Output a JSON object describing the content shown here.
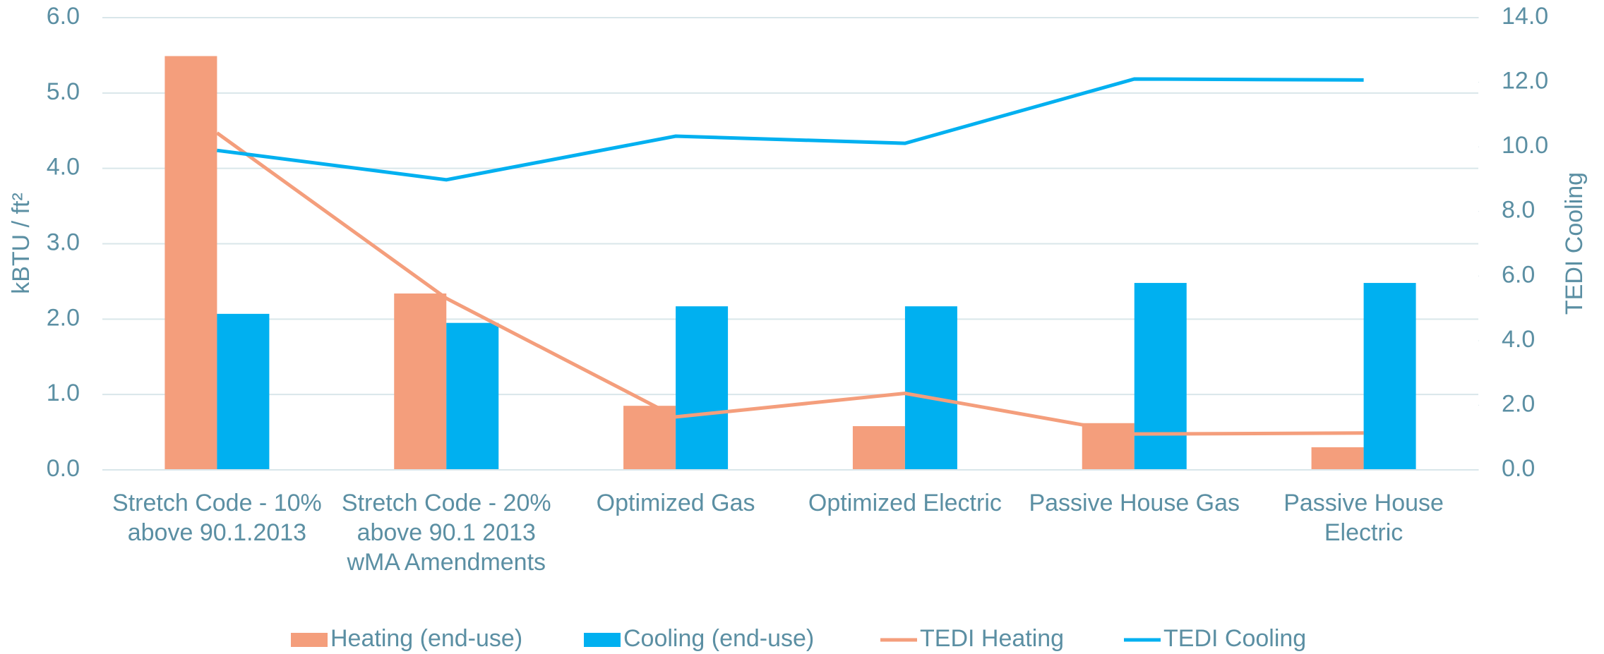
{
  "chart_data": {
    "type": "bar_line",
    "categories": [
      "Stretch Code - 10% above 90.1.2013",
      "Stretch Code - 20% above 90.1 2013 wMA Amendments",
      "Optimized Gas",
      "Optimized Electric",
      "Passive House Gas",
      "Passive House Electric"
    ],
    "series": [
      {
        "name": "Heating (end-use)",
        "type": "bar",
        "color": "#f49e7c",
        "values": [
          5.49,
          2.34,
          0.85,
          0.58,
          0.62,
          0.3
        ]
      },
      {
        "name": "Cooling (end-use)",
        "type": "bar",
        "color": "#00b0f0",
        "values": [
          2.07,
          1.95,
          2.17,
          2.17,
          2.48,
          2.48
        ]
      },
      {
        "name": "TEDI Heating",
        "type": "line",
        "axis": "y2",
        "color": "#f49e7c",
        "values": [
          10.43,
          5.31,
          1.64,
          2.37,
          1.11,
          1.14
        ]
      },
      {
        "name": "TEDI Cooling",
        "type": "line",
        "axis": "y2",
        "color": "#00b0f0",
        "values": [
          9.89,
          8.98,
          10.33,
          10.11,
          12.1,
          12.07
        ]
      }
    ],
    "ylabel": "kBTU / ft²",
    "y2label": "TEDI Cooling",
    "ylim": [
      0,
      6
    ],
    "yticks": [
      {
        "value": 0,
        "label": "0.0"
      },
      {
        "value": 1,
        "label": "1.0"
      },
      {
        "value": 2,
        "label": "2.0"
      },
      {
        "value": 3,
        "label": "3.0"
      },
      {
        "value": 4,
        "label": "4.0"
      },
      {
        "value": 5,
        "label": "5.0"
      },
      {
        "value": 6,
        "label": "6.0"
      }
    ],
    "y2lim": [
      0,
      14
    ],
    "y2ticks": [
      {
        "value": 0,
        "label": "0.0"
      },
      {
        "value": 2,
        "label": "2.0"
      },
      {
        "value": 4,
        "label": "4.0"
      },
      {
        "value": 6,
        "label": "6.0"
      },
      {
        "value": 8,
        "label": "8.0"
      },
      {
        "value": 10,
        "label": "10.0"
      },
      {
        "value": 12,
        "label": "12.0"
      },
      {
        "value": 14,
        "label": "14.0"
      }
    ],
    "grid": true,
    "legend": "bottom"
  }
}
